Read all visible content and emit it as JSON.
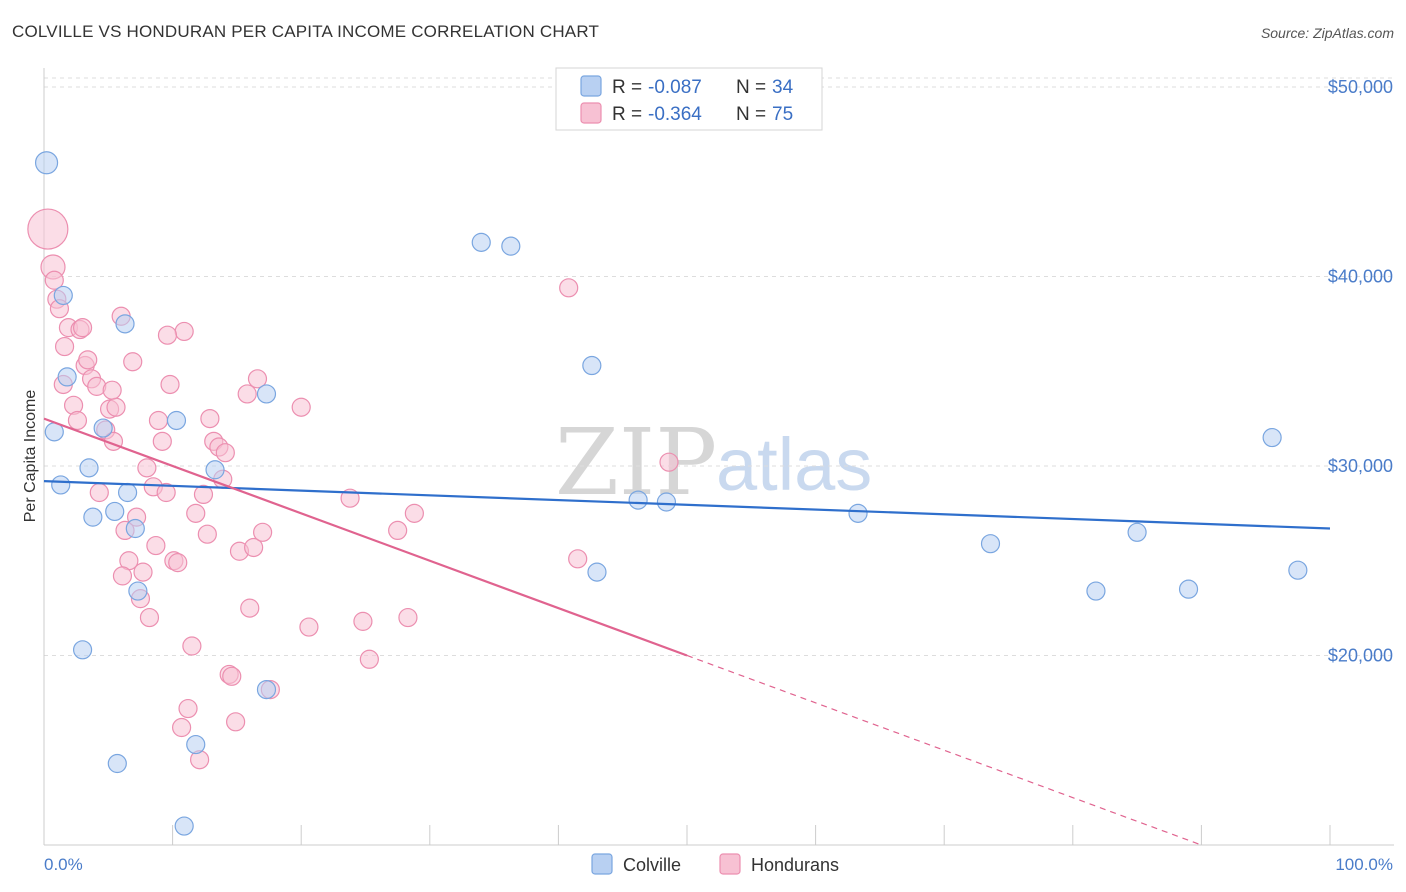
{
  "title": "COLVILLE VS HONDURAN PER CAPITA INCOME CORRELATION CHART",
  "source": "Source: ZipAtlas.com",
  "watermark": {
    "zip": "ZIP",
    "atlas": "atlas"
  },
  "colors": {
    "colville_fill": "#b8d0f2",
    "colville_stroke": "#7aa6e0",
    "colville_line": "#2f6fcc",
    "hondurans_fill": "#f7c1d3",
    "hondurans_stroke": "#ec8fb0",
    "hondurans_line": "#e0638f",
    "grid": "#dddddd",
    "axis_text": "#4a7cc9"
  },
  "legend": {
    "rows": [
      {
        "r_label": "R = ",
        "r_value": "-0.087",
        "n_label": "N = ",
        "n_value": "34"
      },
      {
        "r_label": "R = ",
        "r_value": "-0.364",
        "n_label": "N = ",
        "n_value": "75"
      }
    ]
  },
  "chart_data": {
    "type": "scatter",
    "title": "COLVILLE VS HONDURAN PER CAPITA INCOME CORRELATION CHART",
    "xlabel": "",
    "ylabel": "Per Capita Income",
    "xlim": [
      0,
      100
    ],
    "ylim": [
      10000,
      51000
    ],
    "x_tick_labels": [
      "0.0%",
      "100.0%"
    ],
    "y_ticks": [
      20000,
      30000,
      40000,
      50000
    ],
    "y_tick_labels": [
      "$20,000",
      "$30,000",
      "$40,000",
      "$50,000"
    ],
    "grid": "horizontal dashed",
    "legend_position": "top-center",
    "series": [
      {
        "name": "Colville",
        "points": [
          [
            0.2,
            46000
          ],
          [
            1.5,
            39000
          ],
          [
            0.8,
            31800
          ],
          [
            1.3,
            29000
          ],
          [
            1.8,
            34700
          ],
          [
            3.5,
            29900
          ],
          [
            3.8,
            27300
          ],
          [
            4.6,
            32000
          ],
          [
            5.5,
            27600
          ],
          [
            6.3,
            37500
          ],
          [
            6.5,
            28600
          ],
          [
            3.0,
            20300
          ],
          [
            7.1,
            26700
          ],
          [
            7.3,
            23400
          ],
          [
            10.3,
            32400
          ],
          [
            13.3,
            29800
          ],
          [
            17.3,
            33800
          ],
          [
            5.7,
            14300
          ],
          [
            11.8,
            15300
          ],
          [
            17.3,
            18200
          ],
          [
            10.9,
            11000
          ],
          [
            34.0,
            41800
          ],
          [
            36.3,
            41600
          ],
          [
            42.6,
            35300
          ],
          [
            43.0,
            24400
          ],
          [
            46.2,
            28200
          ],
          [
            48.4,
            28100
          ],
          [
            63.3,
            27500
          ],
          [
            73.6,
            25900
          ],
          [
            81.8,
            23400
          ],
          [
            85.0,
            26500
          ],
          [
            89.0,
            23500
          ],
          [
            95.5,
            31500
          ],
          [
            97.5,
            24500
          ]
        ],
        "trend": {
          "x": [
            0,
            100
          ],
          "y": [
            29200,
            26700
          ]
        }
      },
      {
        "name": "Hondurans",
        "points": [
          [
            0.3,
            42500
          ],
          [
            0.7,
            40500
          ],
          [
            0.8,
            39800
          ],
          [
            1.0,
            38800
          ],
          [
            1.2,
            38300
          ],
          [
            1.6,
            36300
          ],
          [
            1.9,
            37300
          ],
          [
            1.5,
            34300
          ],
          [
            2.3,
            33200
          ],
          [
            2.6,
            32400
          ],
          [
            2.8,
            37200
          ],
          [
            3.0,
            37300
          ],
          [
            3.2,
            35300
          ],
          [
            3.4,
            35600
          ],
          [
            3.7,
            34600
          ],
          [
            4.1,
            34200
          ],
          [
            4.3,
            28600
          ],
          [
            4.8,
            31900
          ],
          [
            5.1,
            33000
          ],
          [
            5.4,
            31300
          ],
          [
            5.6,
            33100
          ],
          [
            6.0,
            37900
          ],
          [
            6.3,
            26600
          ],
          [
            6.6,
            25000
          ],
          [
            6.9,
            35500
          ],
          [
            7.2,
            27300
          ],
          [
            7.5,
            23000
          ],
          [
            7.7,
            24400
          ],
          [
            8.0,
            29900
          ],
          [
            8.2,
            22000
          ],
          [
            8.5,
            28900
          ],
          [
            8.7,
            25800
          ],
          [
            8.9,
            32400
          ],
          [
            9.2,
            31300
          ],
          [
            9.5,
            28600
          ],
          [
            9.8,
            34300
          ],
          [
            10.1,
            25000
          ],
          [
            10.4,
            24900
          ],
          [
            10.7,
            16200
          ],
          [
            10.9,
            37100
          ],
          [
            11.2,
            17200
          ],
          [
            11.5,
            20500
          ],
          [
            11.8,
            27500
          ],
          [
            12.1,
            14500
          ],
          [
            12.4,
            28500
          ],
          [
            12.7,
            26400
          ],
          [
            12.9,
            32500
          ],
          [
            13.2,
            31300
          ],
          [
            13.6,
            31000
          ],
          [
            13.9,
            29300
          ],
          [
            14.1,
            30700
          ],
          [
            14.4,
            19000
          ],
          [
            14.6,
            18900
          ],
          [
            14.9,
            16500
          ],
          [
            15.2,
            25500
          ],
          [
            15.8,
            33800
          ],
          [
            16.0,
            22500
          ],
          [
            16.3,
            25700
          ],
          [
            16.6,
            34600
          ],
          [
            17.0,
            26500
          ],
          [
            17.6,
            18200
          ],
          [
            20.0,
            33100
          ],
          [
            20.6,
            21500
          ],
          [
            23.8,
            28300
          ],
          [
            24.8,
            21800
          ],
          [
            25.3,
            19800
          ],
          [
            27.5,
            26600
          ],
          [
            28.3,
            22000
          ],
          [
            28.8,
            27500
          ],
          [
            40.8,
            39400
          ],
          [
            41.5,
            25100
          ],
          [
            48.6,
            30200
          ],
          [
            5.3,
            34000
          ],
          [
            9.6,
            36900
          ],
          [
            6.1,
            24200
          ]
        ],
        "trend": {
          "x": [
            0,
            50
          ],
          "y": [
            32500,
            20000
          ]
        },
        "trend_extension": {
          "x": [
            50,
            100
          ],
          "y": [
            20000,
            7500
          ]
        }
      }
    ]
  },
  "bottom_legend": {
    "items": [
      "Colville",
      "Hondurans"
    ]
  }
}
